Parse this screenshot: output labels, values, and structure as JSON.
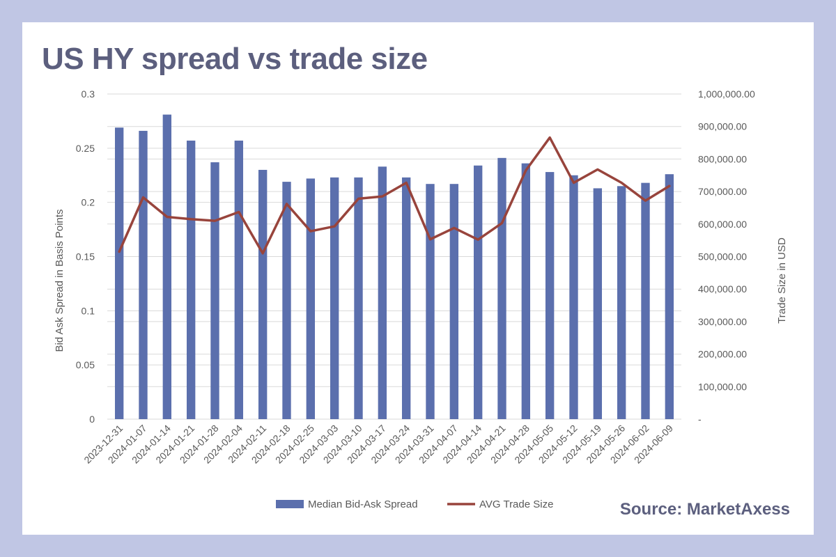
{
  "header": {
    "title": "US HY spread vs trade size"
  },
  "footer": {
    "source": "Source: MarketAxess"
  },
  "chart_data": {
    "type": "bar",
    "categories": [
      "2023-12-31",
      "2024-01-07",
      "2024-01-14",
      "2024-01-21",
      "2024-01-28",
      "2024-02-04",
      "2024-02-11",
      "2024-02-18",
      "2024-02-25",
      "2024-03-03",
      "2024-03-10",
      "2024-03-17",
      "2024-03-24",
      "2024-03-31",
      "2024-04-07",
      "2024-04-14",
      "2024-04-21",
      "2024-04-28",
      "2024-05-05",
      "2024-05-12",
      "2024-05-19",
      "2024-05-26",
      "2024-06-02",
      "2024-06-09"
    ],
    "series": [
      {
        "name": "Median Bid-Ask Spread",
        "type": "bar",
        "axis": "left",
        "values": [
          0.269,
          0.266,
          0.281,
          0.257,
          0.237,
          0.257,
          0.23,
          0.219,
          0.222,
          0.223,
          0.223,
          0.233,
          0.223,
          0.217,
          0.217,
          0.234,
          0.241,
          0.236,
          0.228,
          0.225,
          0.213,
          0.215,
          0.218,
          0.226
        ]
      },
      {
        "name": "AVG Trade Size",
        "type": "line",
        "axis": "right",
        "values": [
          515000,
          682000,
          622000,
          615000,
          610000,
          637000,
          510000,
          662000,
          578000,
          593000,
          678000,
          685000,
          727000,
          553000,
          588000,
          552000,
          603000,
          765000,
          866000,
          727000,
          768000,
          727000,
          672000,
          717000
        ]
      }
    ],
    "ylabel": "Bid Ask Spread in Basis Points",
    "y2label": "Trade Size in USD",
    "ylim": [
      0,
      0.3
    ],
    "y2lim": [
      0,
      1000000
    ],
    "yticks": [
      "0",
      "0.05",
      "0.1",
      "0.15",
      "0.2",
      "0.25",
      "0.3"
    ],
    "y2ticks": [
      "-",
      "100,000.00",
      "200,000.00",
      "300,000.00",
      "400,000.00",
      "500,000.00",
      "600,000.00",
      "700,000.00",
      "800,000.00",
      "900,000.00",
      "1,000,000.00"
    ],
    "grid": true,
    "legend": "bottom",
    "colors": {
      "bar": "#5b6fad",
      "line": "#98443c",
      "grid": "#d9d9d9",
      "text": "#595959"
    }
  }
}
